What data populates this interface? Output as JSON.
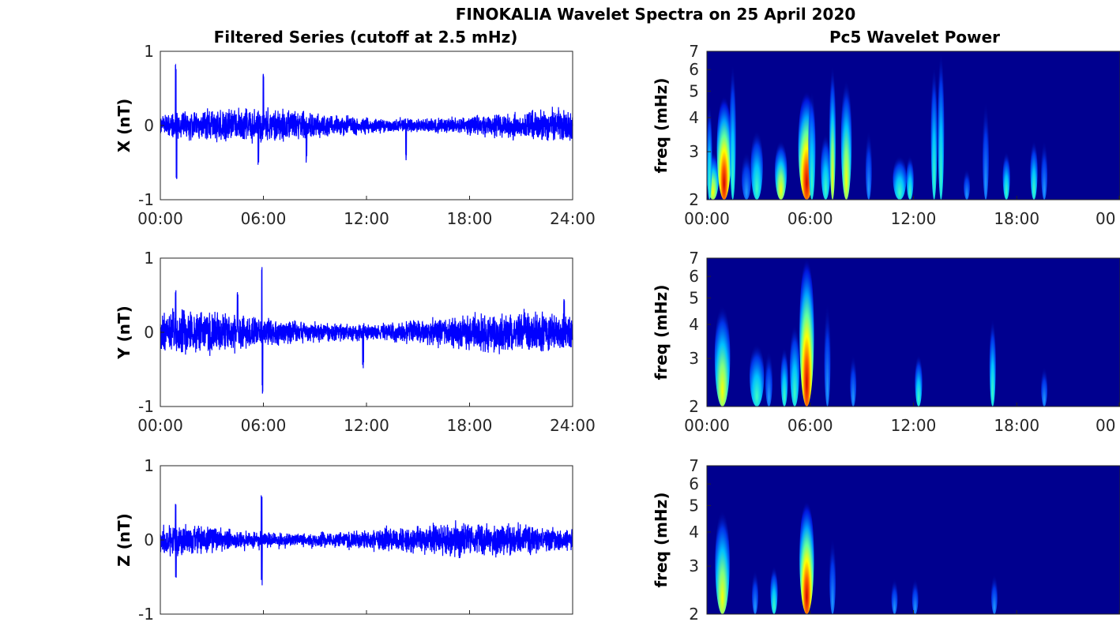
{
  "title": "FINOKALIA Wavelet Spectra on 25 April 2020",
  "colors": {
    "series": "#0000ff",
    "background": "#00008f",
    "axis": "#262626"
  },
  "chart_data": [
    {
      "type": "line",
      "title": "Filtered Series (cutoff at 2.5 mHz)",
      "xlabel": "",
      "x_ticks": [
        "00:00",
        "06:00",
        "12:00",
        "18:00",
        "24:00"
      ],
      "xlim_hours": [
        0,
        24
      ],
      "panels": [
        {
          "ylabel": "X (nT)",
          "ylim": [
            -1,
            1
          ],
          "y_ticks": [
            "1",
            "0",
            "-1"
          ],
          "show_x_ticks": true,
          "base_amplitude": 0.2,
          "peaks": [
            {
              "t": 0.9,
              "v": 0.85
            },
            {
              "t": 0.95,
              "v": -0.75
            },
            {
              "t": 6.0,
              "v": 0.7
            },
            {
              "t": 5.7,
              "v": -0.55
            },
            {
              "t": 8.5,
              "v": -0.5
            },
            {
              "t": 14.3,
              "v": -0.48
            }
          ]
        },
        {
          "ylabel": "Y (nT)",
          "ylim": [
            -1,
            1
          ],
          "y_ticks": [
            "1",
            "0",
            "-1"
          ],
          "show_x_ticks": true,
          "base_amplitude": 0.25,
          "peaks": [
            {
              "t": 5.9,
              "v": 0.88
            },
            {
              "t": 5.95,
              "v": -0.88
            },
            {
              "t": 4.5,
              "v": 0.55
            },
            {
              "t": 0.9,
              "v": 0.6
            },
            {
              "t": 11.8,
              "v": -0.5
            },
            {
              "t": 23.5,
              "v": 0.45
            }
          ]
        },
        {
          "ylabel": "Z (nT)",
          "ylim": [
            -1,
            1
          ],
          "y_ticks": [
            "1",
            "0",
            "-1"
          ],
          "show_x_ticks": false,
          "base_amplitude": 0.2,
          "peaks": [
            {
              "t": 5.9,
              "v": 0.65
            },
            {
              "t": 5.9,
              "v": -0.62
            },
            {
              "t": 0.9,
              "v": 0.52
            },
            {
              "t": 0.9,
              "v": -0.62
            }
          ]
        }
      ]
    },
    {
      "type": "heatmap",
      "title": "Pc5 Wavelet Power",
      "ylabel": "freq (mHz)",
      "y_scale": "log",
      "ylim_mHz": [
        2,
        7
      ],
      "y_ticks": [
        "7",
        "6",
        "5",
        "4",
        "3",
        "2"
      ],
      "x_ticks": [
        "00:00",
        "06:00",
        "12:00",
        "18:00",
        "00"
      ],
      "xlim_hours": [
        0,
        24
      ],
      "panels": [
        {
          "show_x_ticks": true,
          "events": [
            {
              "t": 0.35,
              "fmax": 3.0,
              "level": 2,
              "w": 0.35
            },
            {
              "t": 1.0,
              "fmax": 4.8,
              "level": 3,
              "w": 0.3
            },
            {
              "t": 1.5,
              "fmax": 6.3,
              "level": 1,
              "w": 0.12
            },
            {
              "t": 0.15,
              "fmax": 4.5,
              "level": 1,
              "w": 0.1
            },
            {
              "t": 2.9,
              "fmax": 3.6,
              "level": 1,
              "w": 0.25
            },
            {
              "t": 2.3,
              "fmax": 3.0,
              "level": 0,
              "w": 0.2
            },
            {
              "t": 4.3,
              "fmax": 3.3,
              "level": 2,
              "w": 0.25
            },
            {
              "t": 5.8,
              "fmax": 5.0,
              "level": 3,
              "w": 0.35
            },
            {
              "t": 6.1,
              "fmax": 5.0,
              "level": 1,
              "w": 0.15
            },
            {
              "t": 6.9,
              "fmax": 3.5,
              "level": 1,
              "w": 0.2
            },
            {
              "t": 7.3,
              "fmax": 6.2,
              "level": 2,
              "w": 0.12
            },
            {
              "t": 8.1,
              "fmax": 5.5,
              "level": 2,
              "w": 0.22
            },
            {
              "t": 9.4,
              "fmax": 3.6,
              "level": 0,
              "w": 0.1
            },
            {
              "t": 11.2,
              "fmax": 2.9,
              "level": 1,
              "w": 0.28
            },
            {
              "t": 11.8,
              "fmax": 2.9,
              "level": 1,
              "w": 0.15
            },
            {
              "t": 13.2,
              "fmax": 6.2,
              "level": 1,
              "w": 0.12
            },
            {
              "t": 13.6,
              "fmax": 7.0,
              "level": 1,
              "w": 0.1
            },
            {
              "t": 15.1,
              "fmax": 2.6,
              "level": 0,
              "w": 0.12
            },
            {
              "t": 16.2,
              "fmax": 4.6,
              "level": 0,
              "w": 0.12
            },
            {
              "t": 17.4,
              "fmax": 3.0,
              "level": 1,
              "w": 0.15
            },
            {
              "t": 19.0,
              "fmax": 3.3,
              "level": 1,
              "w": 0.15
            },
            {
              "t": 19.6,
              "fmax": 3.3,
              "level": 0,
              "w": 0.12
            }
          ]
        },
        {
          "show_x_ticks": true,
          "events": [
            {
              "t": 0.9,
              "fmax": 4.7,
              "level": 2,
              "w": 0.32
            },
            {
              "t": 2.9,
              "fmax": 3.4,
              "level": 1,
              "w": 0.3
            },
            {
              "t": 3.6,
              "fmax": 3.2,
              "level": 0,
              "w": 0.15
            },
            {
              "t": 4.5,
              "fmax": 3.3,
              "level": 1,
              "w": 0.15
            },
            {
              "t": 5.1,
              "fmax": 4.0,
              "level": 1,
              "w": 0.2
            },
            {
              "t": 5.8,
              "fmax": 7.0,
              "level": 3,
              "w": 0.3
            },
            {
              "t": 7.0,
              "fmax": 4.8,
              "level": 0,
              "w": 0.08
            },
            {
              "t": 8.5,
              "fmax": 3.1,
              "level": 0,
              "w": 0.12
            },
            {
              "t": 12.3,
              "fmax": 3.1,
              "level": 1,
              "w": 0.15
            },
            {
              "t": 16.6,
              "fmax": 4.2,
              "level": 1,
              "w": 0.12
            },
            {
              "t": 19.6,
              "fmax": 2.8,
              "level": 0,
              "w": 0.08
            }
          ]
        },
        {
          "show_x_ticks": false,
          "events": [
            {
              "t": 0.9,
              "fmax": 4.8,
              "level": 2,
              "w": 0.3
            },
            {
              "t": 2.8,
              "fmax": 2.9,
              "level": 0,
              "w": 0.12
            },
            {
              "t": 3.9,
              "fmax": 3.0,
              "level": 1,
              "w": 0.15
            },
            {
              "t": 5.8,
              "fmax": 5.2,
              "level": 3,
              "w": 0.3
            },
            {
              "t": 7.3,
              "fmax": 3.8,
              "level": 0,
              "w": 0.08
            },
            {
              "t": 10.9,
              "fmax": 2.7,
              "level": 0,
              "w": 0.08
            },
            {
              "t": 12.1,
              "fmax": 2.7,
              "level": 0,
              "w": 0.1
            },
            {
              "t": 16.7,
              "fmax": 2.8,
              "level": 0,
              "w": 0.1
            }
          ]
        }
      ]
    }
  ]
}
